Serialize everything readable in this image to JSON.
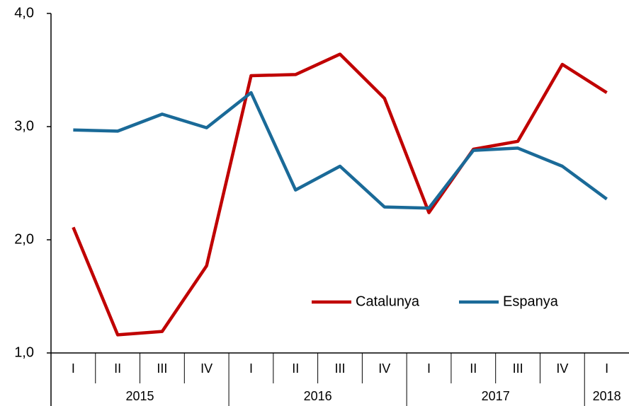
{
  "chart_data": {
    "type": "line",
    "categories": [
      "I",
      "II",
      "III",
      "IV",
      "I",
      "II",
      "III",
      "IV",
      "I",
      "II",
      "III",
      "IV",
      "I"
    ],
    "year_labels": [
      "2015",
      null,
      null,
      null,
      "2016",
      null,
      null,
      null,
      "2017",
      null,
      null,
      null,
      "2018"
    ],
    "series": [
      {
        "name": "Catalunya",
        "color": "#c00000",
        "values": [
          2.11,
          1.16,
          1.19,
          1.77,
          3.45,
          3.46,
          3.64,
          3.25,
          2.24,
          2.8,
          2.87,
          3.55,
          3.3
        ]
      },
      {
        "name": "Espanya",
        "color": "#1a6a98",
        "values": [
          2.97,
          2.96,
          3.11,
          2.99,
          3.3,
          2.44,
          2.65,
          2.29,
          2.28,
          2.79,
          2.81,
          2.65,
          2.36
        ]
      }
    ],
    "ylim": [
      1,
      4
    ],
    "yticks": [
      {
        "value": 1,
        "label": "1,0"
      },
      {
        "value": 2,
        "label": "2,0"
      },
      {
        "value": 3,
        "label": "3,0"
      },
      {
        "value": 4,
        "label": "4,0"
      }
    ],
    "grid": false,
    "legend": "bottom-right"
  }
}
